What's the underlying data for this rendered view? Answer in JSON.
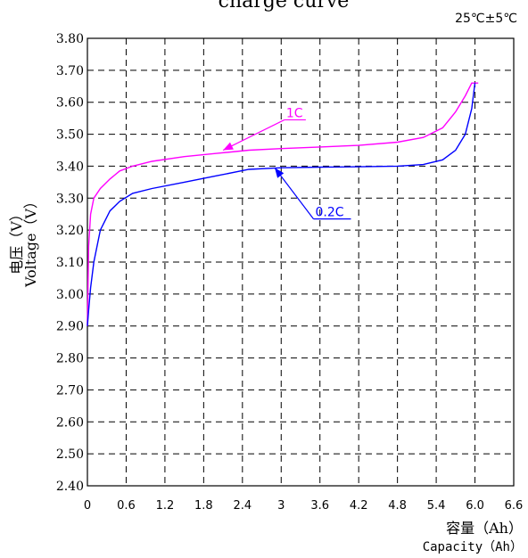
{
  "chart_data": {
    "type": "line",
    "title": "charge curve",
    "condition": "25℃±5℃",
    "ylabel_cn": "电压（V）",
    "ylabel_en": "Voltage（V）",
    "xlabel_cn": "容量（Ah）",
    "xlabel_en": "Capacity（Ah）",
    "xlim": [
      0,
      6.6
    ],
    "ylim": [
      2.4,
      3.8
    ],
    "x_ticks": [
      "0",
      "0.6",
      "1.2",
      "1.8",
      "2.4",
      "3",
      "3.6",
      "4.2",
      "4.8",
      "5.4",
      "6.0",
      "6.6"
    ],
    "x_tick_values": [
      0,
      0.6,
      1.2,
      1.8,
      2.4,
      3.0,
      3.6,
      4.2,
      4.8,
      5.4,
      6.0,
      6.6
    ],
    "y_ticks": [
      "3.80",
      "3.70",
      "3.60",
      "3.50",
      "3.40",
      "3.30",
      "3.20",
      "3.10",
      "3.00",
      "2.90",
      "2.80",
      "2.70",
      "2.60",
      "2.50",
      "2.40"
    ],
    "y_tick_values": [
      3.8,
      3.7,
      3.6,
      3.5,
      3.4,
      3.3,
      3.2,
      3.1,
      3.0,
      2.9,
      2.8,
      2.7,
      2.6,
      2.5,
      2.4
    ],
    "grid": true,
    "series": [
      {
        "name": "1C",
        "color": "#ff00ff",
        "x": [
          0.0,
          0.02,
          0.05,
          0.1,
          0.2,
          0.35,
          0.5,
          0.7,
          1.0,
          1.5,
          2.0,
          2.5,
          3.0,
          3.6,
          4.2,
          4.8,
          5.2,
          5.5,
          5.7,
          5.85,
          5.95,
          6.05
        ],
        "y": [
          2.9,
          3.15,
          3.25,
          3.3,
          3.33,
          3.36,
          3.385,
          3.4,
          3.415,
          3.43,
          3.44,
          3.45,
          3.455,
          3.46,
          3.465,
          3.475,
          3.49,
          3.52,
          3.57,
          3.62,
          3.66,
          3.66
        ]
      },
      {
        "name": "0.2C",
        "color": "#0000ff",
        "x": [
          0.0,
          0.02,
          0.05,
          0.1,
          0.2,
          0.35,
          0.5,
          0.7,
          1.0,
          1.5,
          2.0,
          2.5,
          3.0,
          3.6,
          4.2,
          4.8,
          5.2,
          5.5,
          5.7,
          5.85,
          5.95,
          6.0
        ],
        "y": [
          2.9,
          2.95,
          3.02,
          3.1,
          3.2,
          3.26,
          3.29,
          3.315,
          3.33,
          3.35,
          3.37,
          3.39,
          3.395,
          3.397,
          3.398,
          3.4,
          3.405,
          3.42,
          3.45,
          3.5,
          3.58,
          3.66
        ]
      }
    ],
    "annotations": [
      {
        "text": "1C",
        "color": "#ff00ff",
        "label_x": 3.05,
        "label_y": 3.545,
        "arrow_to_x": 2.1,
        "arrow_to_y": 3.45
      },
      {
        "text": "0.2C",
        "color": "#0000ff",
        "label_x": 3.5,
        "label_y": 3.235,
        "arrow_to_x": 2.9,
        "arrow_to_y": 3.395
      }
    ]
  }
}
